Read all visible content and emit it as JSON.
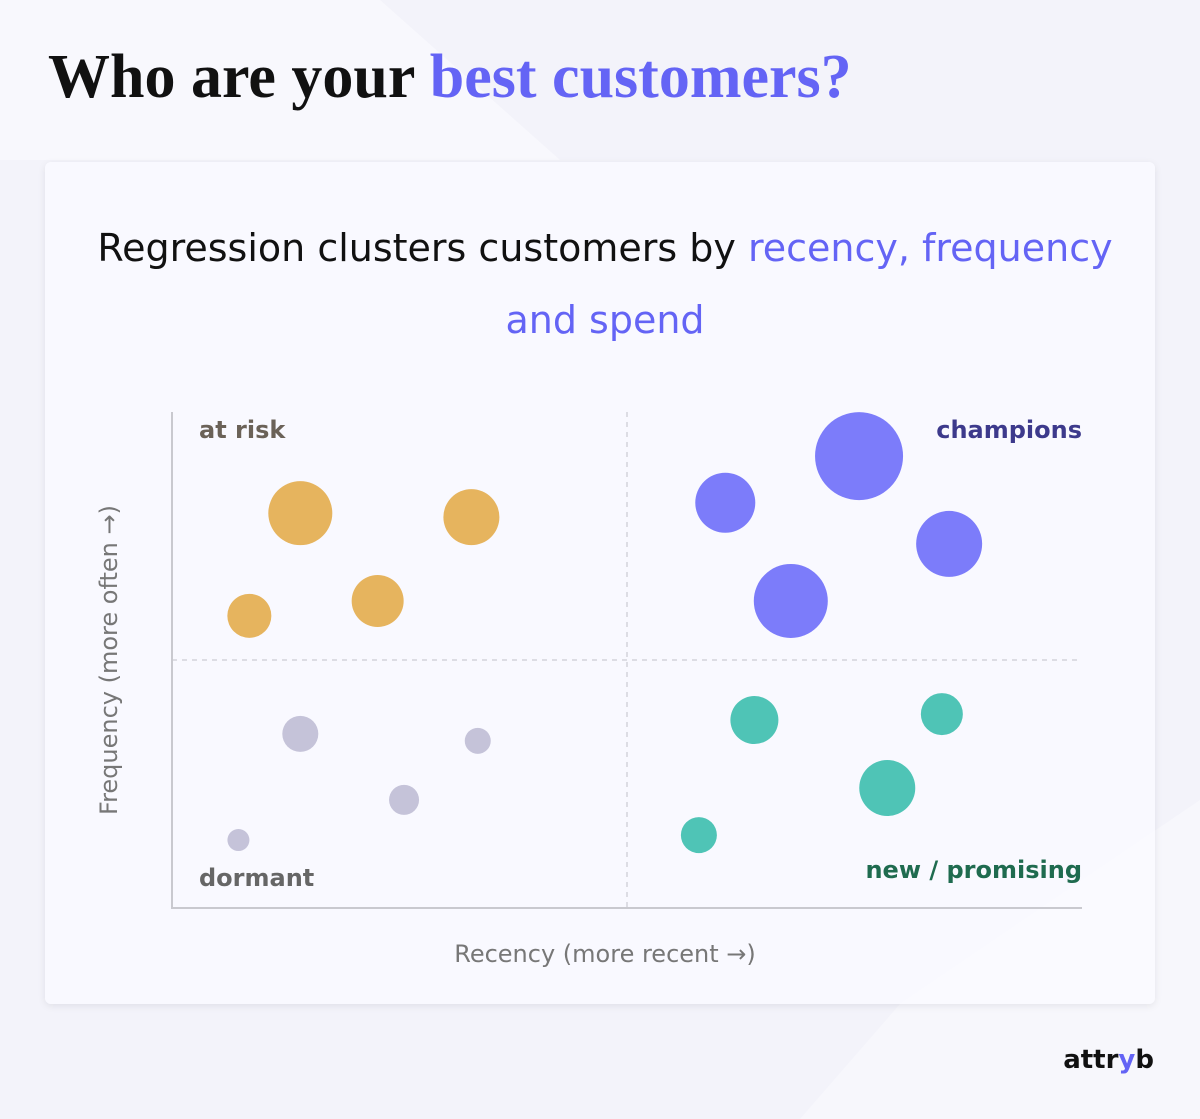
{
  "chart_data": {
    "type": "bubble",
    "title": {
      "text": "Who are your",
      "highlight": "best customers?"
    },
    "subtitle": {
      "text": "Regression clusters customers by",
      "highlight": "recency, frequency and spend"
    },
    "x_label": "Recency (more recent →)",
    "y_label": "Frequency (more often →)",
    "xlim": [
      0,
      100
    ],
    "ylim": [
      0,
      100
    ],
    "quadrant_lines": {
      "x": 50,
      "y": 50
    },
    "series": [
      {
        "name": "at risk",
        "color": "#e6b45e",
        "label_color": "#6b6258",
        "corner": "top-left",
        "x": [
          14.1,
          32.9,
          8.5,
          22.6
        ],
        "values": [
          79.6,
          78.8,
          58.9,
          61.9
        ],
        "sizes": [
          64,
          56,
          44,
          52
        ]
      },
      {
        "name": "champions",
        "color": "#7c7cfa",
        "label_color": "#3d3a8c",
        "corner": "top-right",
        "x": [
          75.5,
          60.8,
          85.4,
          68.0
        ],
        "values": [
          91.1,
          81.7,
          73.4,
          61.9
        ],
        "sizes": [
          88,
          60,
          66,
          74
        ]
      },
      {
        "name": "new / promising",
        "color": "#4fc4b6",
        "label_color": "#1f6b4f",
        "corner": "bottom-right",
        "x": [
          64.0,
          84.6,
          78.6,
          57.9
        ],
        "values": [
          37.9,
          39.1,
          24.2,
          14.7
        ],
        "sizes": [
          48,
          42,
          56,
          36
        ]
      },
      {
        "name": "dormant",
        "color": "#c5c3d9",
        "label_color": "#666666",
        "corner": "bottom-left",
        "x": [
          14.1,
          33.6,
          25.5,
          7.3
        ],
        "values": [
          35.1,
          33.7,
          21.8,
          13.7
        ],
        "sizes": [
          36,
          26,
          30,
          22
        ]
      }
    ],
    "brand": [
      "attr",
      "y",
      "b"
    ]
  }
}
